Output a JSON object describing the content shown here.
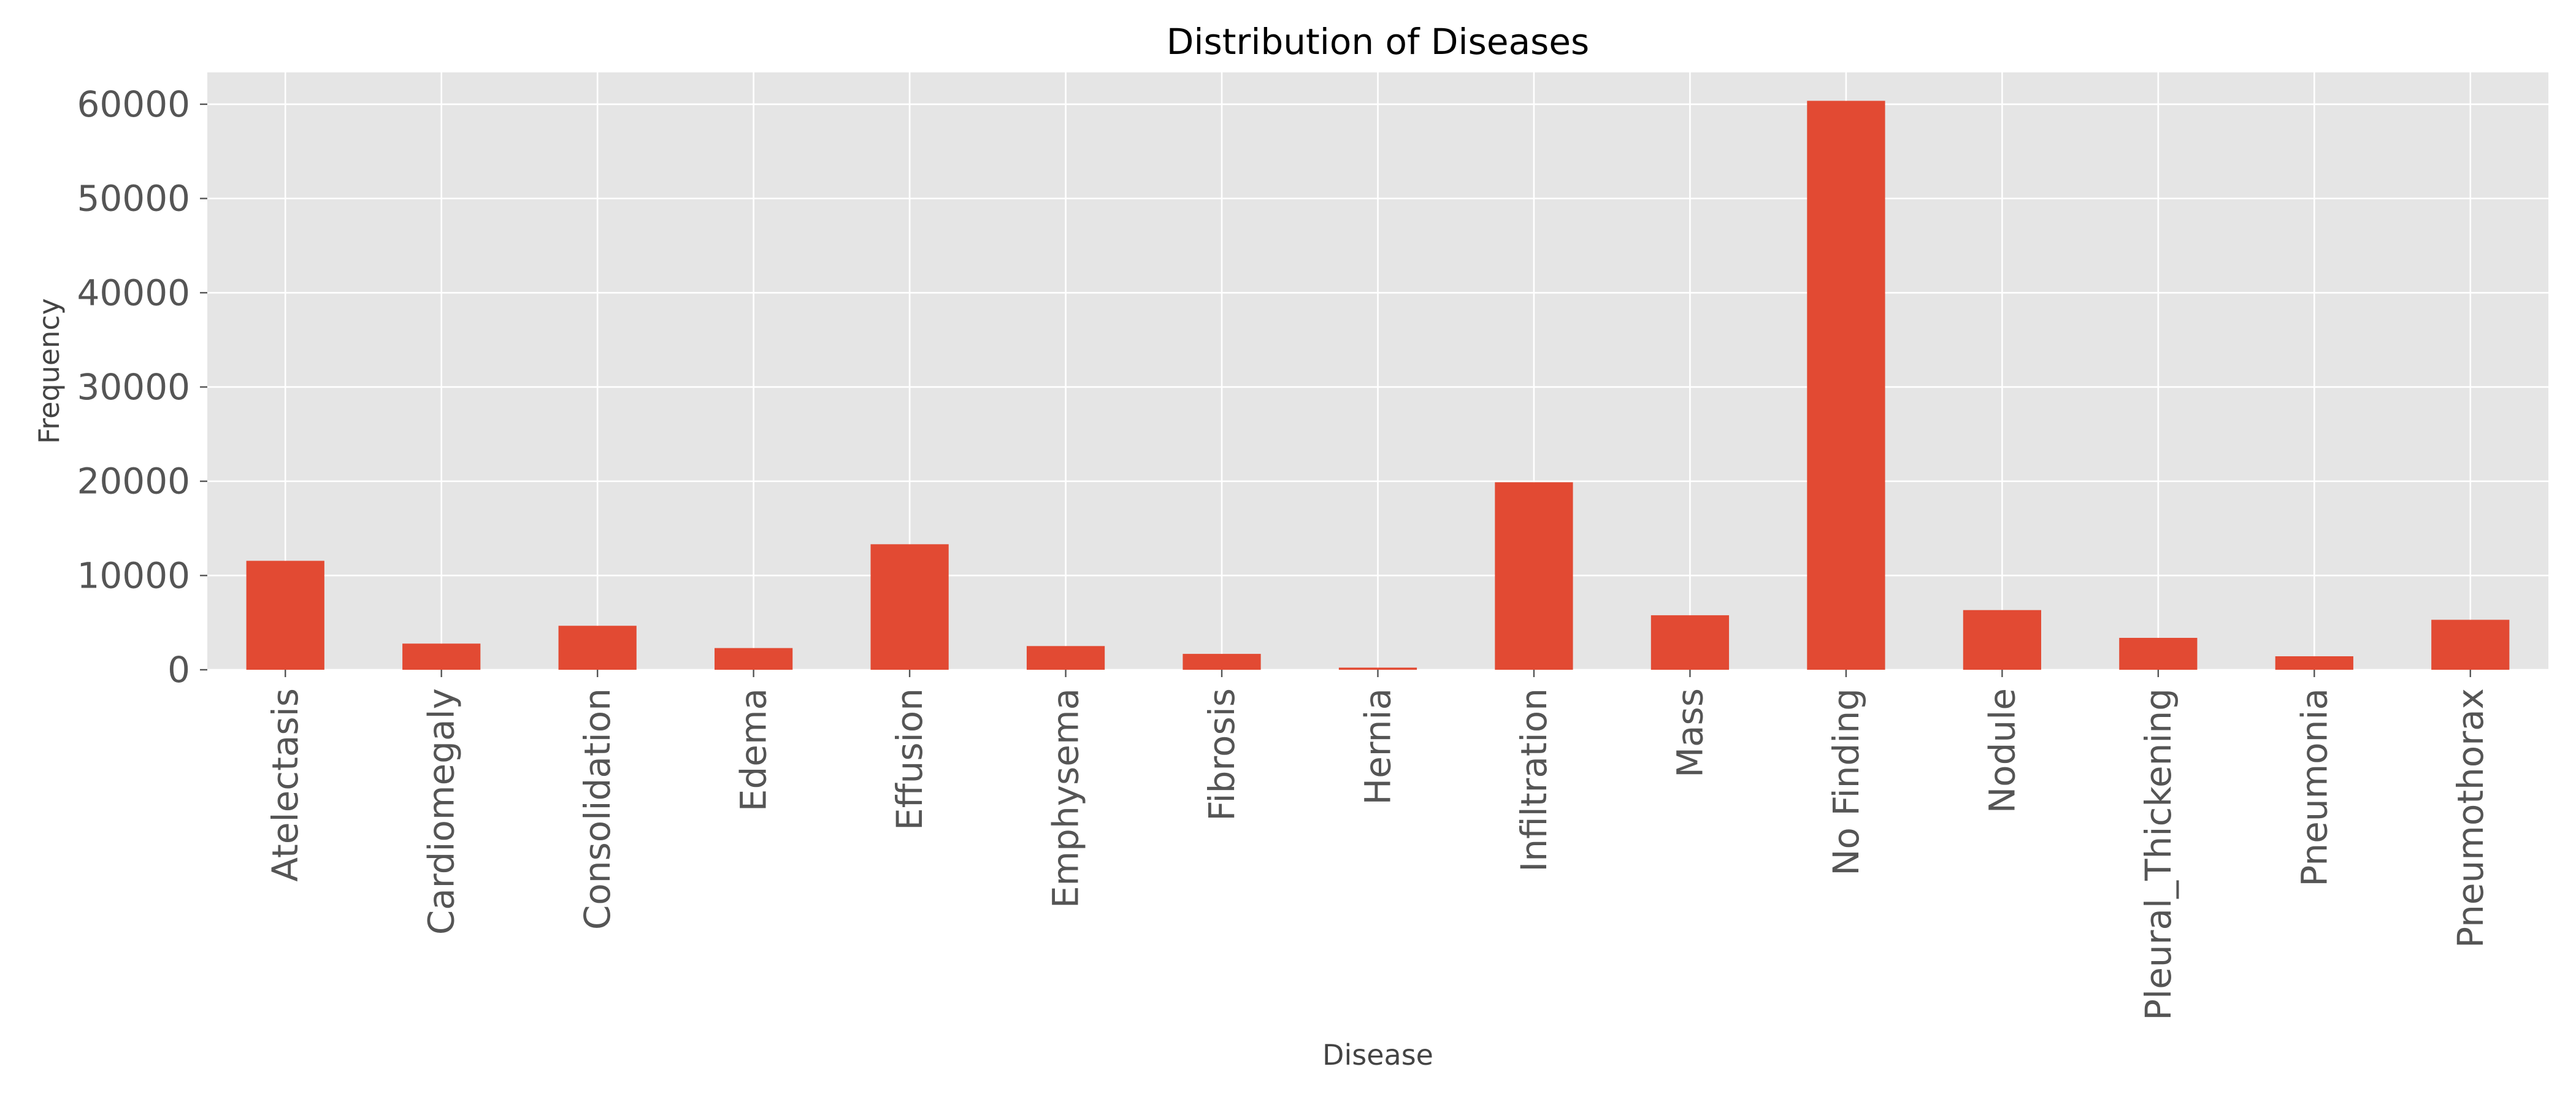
{
  "chart_data": {
    "type": "bar",
    "title": "Distribution of Diseases",
    "xlabel": "Disease",
    "ylabel": "Frequency",
    "categories": [
      "Atelectasis",
      "Cardiomegaly",
      "Consolidation",
      "Edema",
      "Effusion",
      "Emphysema",
      "Fibrosis",
      "Hernia",
      "Infiltration",
      "Mass",
      "No Finding",
      "Nodule",
      "Pleural_Thickening",
      "Pneumonia",
      "Pneumothorax"
    ],
    "values": [
      11559,
      2776,
      4667,
      2303,
      13317,
      2516,
      1686,
      227,
      19894,
      5782,
      60361,
      6331,
      3385,
      1431,
      5302
    ],
    "yticks": [
      0,
      10000,
      20000,
      30000,
      40000,
      50000,
      60000
    ],
    "ytick_labels": [
      "0",
      "10000",
      "20000",
      "30000",
      "40000",
      "50000",
      "60000"
    ],
    "ylim": [
      0,
      63380
    ],
    "grid": true,
    "legend": "none",
    "colors": {
      "bar": "#E24A33",
      "plot_background": "#E5E5E5",
      "grid": "#FFFFFF",
      "tick_label": "#555555"
    }
  }
}
